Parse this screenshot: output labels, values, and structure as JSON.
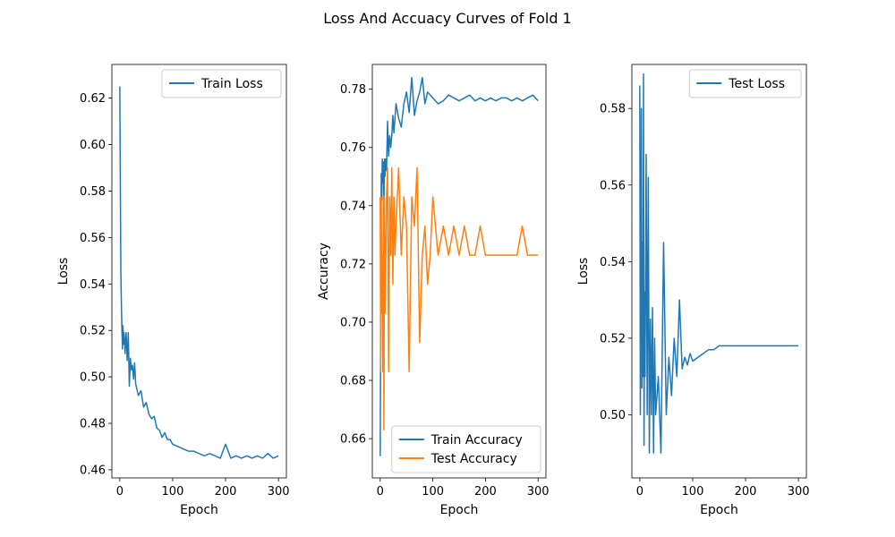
{
  "figure": {
    "title": "Loss And Accuacy Curves of Fold 1"
  },
  "colors": {
    "blue": "#1f77b4",
    "orange": "#ff7f0e"
  },
  "chart_data": [
    {
      "type": "line",
      "xlabel": "Epoch",
      "ylabel": "Loss",
      "xlim": [
        -15,
        315
      ],
      "ylim": [
        0.4565,
        0.6345
      ],
      "xticks": [
        0,
        100,
        200,
        300
      ],
      "yticks": [
        0.46,
        0.48,
        0.5,
        0.52,
        0.54,
        0.56,
        0.58,
        0.6,
        0.62
      ],
      "yticks_fmt": 2,
      "legend": "top-right",
      "series": [
        {
          "name": "Train Loss",
          "color": "#1f77b4",
          "x": [
            0,
            1,
            2,
            3,
            4,
            5,
            6,
            7,
            8,
            9,
            10,
            12,
            14,
            16,
            18,
            20,
            22,
            24,
            26,
            28,
            30,
            35,
            40,
            45,
            50,
            55,
            60,
            65,
            70,
            75,
            80,
            85,
            90,
            95,
            100,
            110,
            120,
            130,
            140,
            150,
            160,
            170,
            180,
            190,
            200,
            210,
            220,
            230,
            240,
            250,
            260,
            270,
            280,
            290,
            300
          ],
          "values": [
            0.625,
            0.582,
            0.545,
            0.531,
            0.521,
            0.512,
            0.522,
            0.514,
            0.519,
            0.516,
            0.51,
            0.519,
            0.507,
            0.519,
            0.496,
            0.508,
            0.503,
            0.505,
            0.499,
            0.506,
            0.497,
            0.492,
            0.494,
            0.487,
            0.489,
            0.484,
            0.482,
            0.483,
            0.478,
            0.477,
            0.474,
            0.476,
            0.473,
            0.473,
            0.471,
            0.47,
            0.469,
            0.468,
            0.468,
            0.467,
            0.466,
            0.467,
            0.466,
            0.465,
            0.471,
            0.465,
            0.466,
            0.465,
            0.466,
            0.465,
            0.466,
            0.465,
            0.467,
            0.465,
            0.466
          ]
        }
      ]
    },
    {
      "type": "line",
      "xlabel": "Epoch",
      "ylabel": "Accuracy",
      "xlim": [
        -15,
        315
      ],
      "ylim": [
        0.6465,
        0.7885
      ],
      "xticks": [
        0,
        100,
        200,
        300
      ],
      "yticks": [
        0.66,
        0.68,
        0.7,
        0.72,
        0.74,
        0.76,
        0.78
      ],
      "yticks_fmt": 2,
      "legend": "bottom-right",
      "series": [
        {
          "name": "Train Accuracy",
          "color": "#1f77b4",
          "x": [
            0,
            1,
            2,
            3,
            4,
            5,
            6,
            7,
            8,
            9,
            10,
            12,
            14,
            16,
            18,
            20,
            22,
            24,
            26,
            28,
            30,
            35,
            40,
            45,
            50,
            55,
            60,
            65,
            70,
            75,
            80,
            85,
            90,
            95,
            100,
            110,
            120,
            130,
            140,
            150,
            160,
            170,
            180,
            190,
            200,
            210,
            220,
            230,
            240,
            250,
            260,
            270,
            280,
            290,
            300
          ],
          "values": [
            0.654,
            0.705,
            0.751,
            0.742,
            0.756,
            0.748,
            0.755,
            0.74,
            0.756,
            0.75,
            0.756,
            0.752,
            0.769,
            0.757,
            0.764,
            0.76,
            0.764,
            0.771,
            0.765,
            0.77,
            0.775,
            0.77,
            0.767,
            0.775,
            0.779,
            0.772,
            0.784,
            0.771,
            0.776,
            0.779,
            0.784,
            0.775,
            0.779,
            0.778,
            0.777,
            0.775,
            0.776,
            0.778,
            0.777,
            0.776,
            0.777,
            0.778,
            0.776,
            0.777,
            0.776,
            0.777,
            0.776,
            0.777,
            0.777,
            0.776,
            0.777,
            0.776,
            0.777,
            0.778,
            0.776
          ]
        },
        {
          "name": "Test Accuracy",
          "color": "#ff7f0e",
          "x": [
            0,
            1,
            2,
            3,
            4,
            5,
            6,
            7,
            8,
            9,
            10,
            12,
            14,
            16,
            18,
            20,
            22,
            24,
            26,
            28,
            30,
            35,
            40,
            45,
            50,
            55,
            60,
            65,
            70,
            75,
            80,
            85,
            90,
            95,
            100,
            110,
            120,
            130,
            140,
            150,
            160,
            170,
            180,
            190,
            200,
            210,
            220,
            230,
            240,
            250,
            260,
            270,
            280,
            290,
            300
          ],
          "values": [
            0.743,
            0.683,
            0.743,
            0.703,
            0.723,
            0.683,
            0.743,
            0.663,
            0.743,
            0.703,
            0.713,
            0.743,
            0.753,
            0.683,
            0.743,
            0.723,
            0.753,
            0.713,
            0.743,
            0.723,
            0.733,
            0.753,
            0.723,
            0.743,
            0.733,
            0.683,
            0.743,
            0.733,
            0.753,
            0.693,
            0.723,
            0.733,
            0.713,
            0.723,
            0.743,
            0.723,
            0.733,
            0.723,
            0.733,
            0.723,
            0.733,
            0.723,
            0.723,
            0.733,
            0.723,
            0.723,
            0.723,
            0.723,
            0.723,
            0.723,
            0.723,
            0.733,
            0.723,
            0.723,
            0.723
          ]
        }
      ]
    },
    {
      "type": "line",
      "xlabel": "Epoch",
      "ylabel": "Loss",
      "xlim": [
        -15,
        315
      ],
      "ylim": [
        0.4835,
        0.5915
      ],
      "xticks": [
        0,
        100,
        200,
        300
      ],
      "yticks": [
        0.5,
        0.52,
        0.54,
        0.56,
        0.58
      ],
      "yticks_fmt": 2,
      "legend": "top-right",
      "series": [
        {
          "name": "Test Loss",
          "color": "#1f77b4",
          "x": [
            0,
            1,
            2,
            3,
            4,
            5,
            6,
            7,
            8,
            9,
            10,
            12,
            14,
            16,
            18,
            20,
            22,
            24,
            26,
            28,
            30,
            35,
            40,
            45,
            50,
            55,
            60,
            65,
            70,
            75,
            80,
            85,
            90,
            95,
            100,
            110,
            120,
            130,
            140,
            150,
            160,
            170,
            180,
            190,
            200,
            210,
            220,
            230,
            240,
            250,
            260,
            270,
            280,
            290,
            300
          ],
          "values": [
            0.586,
            0.5,
            0.537,
            0.58,
            0.507,
            0.545,
            0.51,
            0.589,
            0.492,
            0.532,
            0.51,
            0.568,
            0.5,
            0.562,
            0.49,
            0.525,
            0.5,
            0.528,
            0.49,
            0.52,
            0.5,
            0.51,
            0.49,
            0.545,
            0.5,
            0.515,
            0.505,
            0.52,
            0.51,
            0.53,
            0.512,
            0.515,
            0.513,
            0.516,
            0.514,
            0.515,
            0.516,
            0.517,
            0.517,
            0.518,
            0.518,
            0.518,
            0.518,
            0.518,
            0.518,
            0.518,
            0.518,
            0.518,
            0.518,
            0.518,
            0.518,
            0.518,
            0.518,
            0.518,
            0.518
          ]
        }
      ]
    }
  ]
}
